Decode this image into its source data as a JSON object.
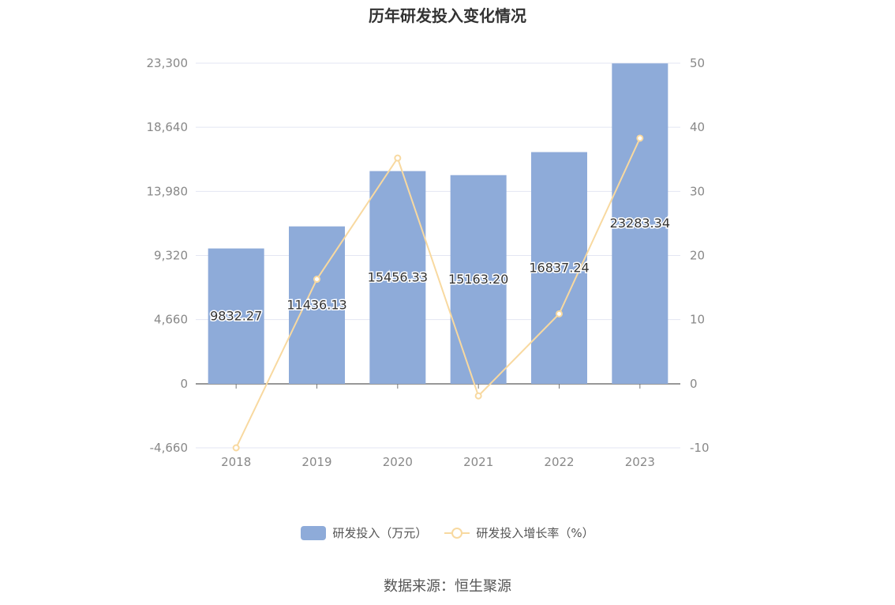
{
  "source_text": "数据来源：恒生聚源",
  "chart_data": {
    "type": "bar",
    "title": "历年研发投入变化情况",
    "categories": [
      "2018",
      "2019",
      "2020",
      "2021",
      "2022",
      "2023"
    ],
    "series": [
      {
        "name": "研发投入（万元）",
        "type": "bar",
        "axis": "left",
        "color": "#8eabd9",
        "values": [
          9832.27,
          11436.13,
          15456.33,
          15163.2,
          16837.24,
          23283.34
        ],
        "data_labels": [
          "9832.27",
          "11436.13",
          "15456.33",
          "15163.20",
          "16837.24",
          "23283.34"
        ]
      },
      {
        "name": "研发投入增长率（%）",
        "type": "line",
        "axis": "right",
        "color": "#f8d9a0",
        "values": [
          -10.0,
          16.3,
          35.2,
          -1.9,
          10.9,
          38.3
        ]
      }
    ],
    "y_left": {
      "range": [
        -4660,
        23300
      ],
      "ticks": [
        -4660,
        0,
        4660,
        9320,
        13980,
        18640,
        23300
      ],
      "tick_labels": [
        "-4,660",
        "0",
        "4,660",
        "9,320",
        "13,980",
        "18,640",
        "23,300"
      ]
    },
    "y_right": {
      "range": [
        -10,
        50
      ],
      "ticks": [
        -10,
        0,
        10,
        20,
        30,
        40,
        50
      ],
      "tick_labels": [
        "-10",
        "0",
        "10",
        "20",
        "30",
        "40",
        "50"
      ]
    },
    "grid": true,
    "legend_position": "bottom"
  }
}
